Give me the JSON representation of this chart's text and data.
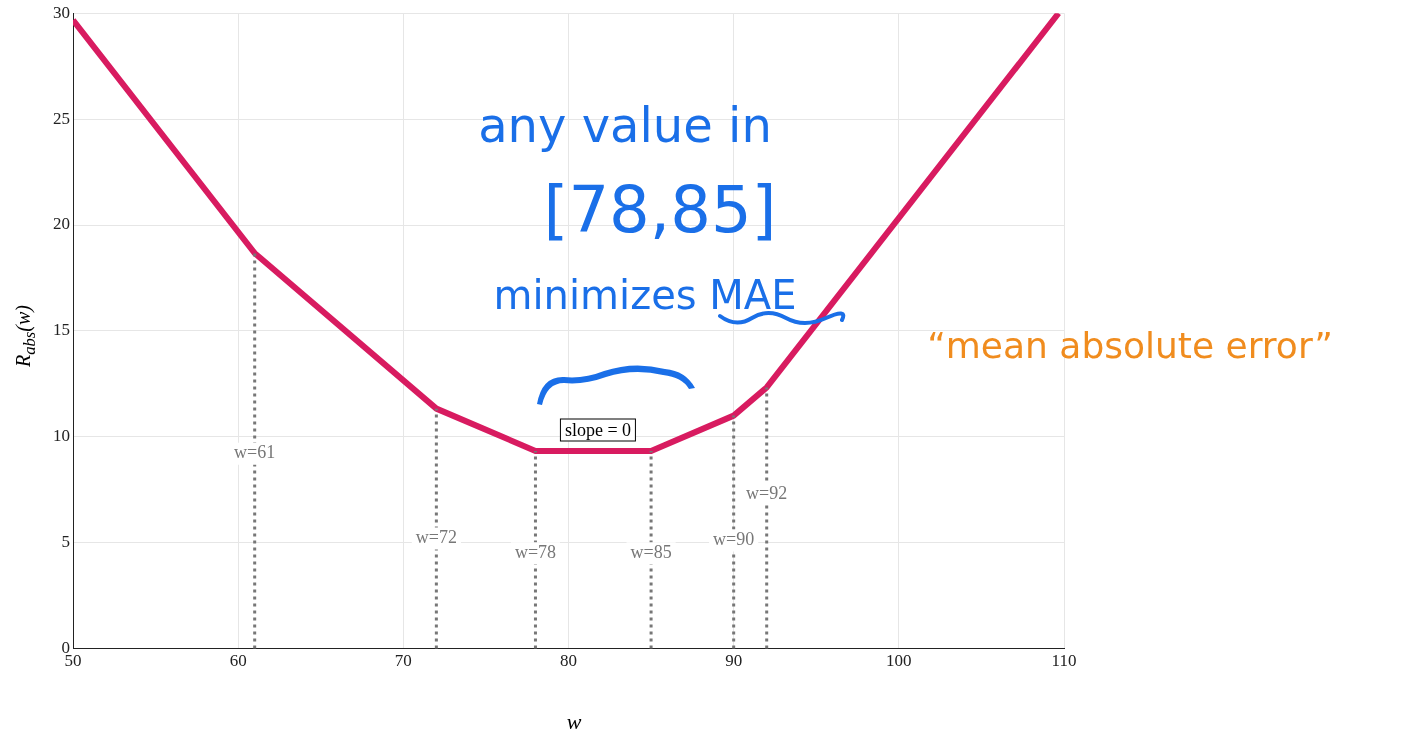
{
  "chart_data": {
    "type": "line",
    "xlabel": "w",
    "ylabel": "R$_{abs}$(w)",
    "x": [
      50,
      61,
      72,
      78,
      85,
      90,
      92,
      109.67
    ],
    "series": [
      {
        "color": "#d81b60",
        "values": [
          29.67,
          18.67,
          11.33,
          9.33,
          9.33,
          11,
          12.33,
          30
        ]
      }
    ],
    "xlim": [
      50,
      110
    ],
    "xticks": [
      50,
      60,
      70,
      80,
      90,
      100,
      110
    ],
    "ylim": [
      0,
      30
    ],
    "yticks": [
      0,
      5,
      10,
      15,
      20,
      25,
      30
    ],
    "grid": true,
    "legend": false,
    "marker": "none",
    "line_style": "solid",
    "ref_lines": [
      {
        "axis": "x",
        "value": 61,
        "color": "#777777",
        "line_style": "dotted"
      },
      {
        "axis": "x",
        "value": 72,
        "color": "#777777",
        "line_style": "dotted"
      },
      {
        "axis": "x",
        "value": 78,
        "color": "#777777",
        "line_style": "dotted"
      },
      {
        "axis": "x",
        "value": 85,
        "color": "#777777",
        "line_style": "dotted"
      },
      {
        "axis": "x",
        "value": 90,
        "color": "#777777",
        "line_style": "dotted"
      },
      {
        "axis": "x",
        "value": 92,
        "color": "#777777",
        "line_style": "dotted"
      }
    ],
    "annotations": [
      {
        "text": "w=61",
        "x": 61,
        "y": 9.2
      },
      {
        "text": "w=72",
        "x": 72,
        "y": 5.2
      },
      {
        "text": "w=78",
        "x": 78,
        "y": 4.5
      },
      {
        "text": "w=85",
        "x": 85,
        "y": 4.5
      },
      {
        "text": "w=90",
        "x": 90,
        "y": 5.1
      },
      {
        "text": "w=92",
        "x": 92,
        "y": 7.3
      },
      "any value in",
      "[78,85]",
      "minimizes MAE",
      "“mean absolute error”",
      "slope = 0"
    ]
  }
}
